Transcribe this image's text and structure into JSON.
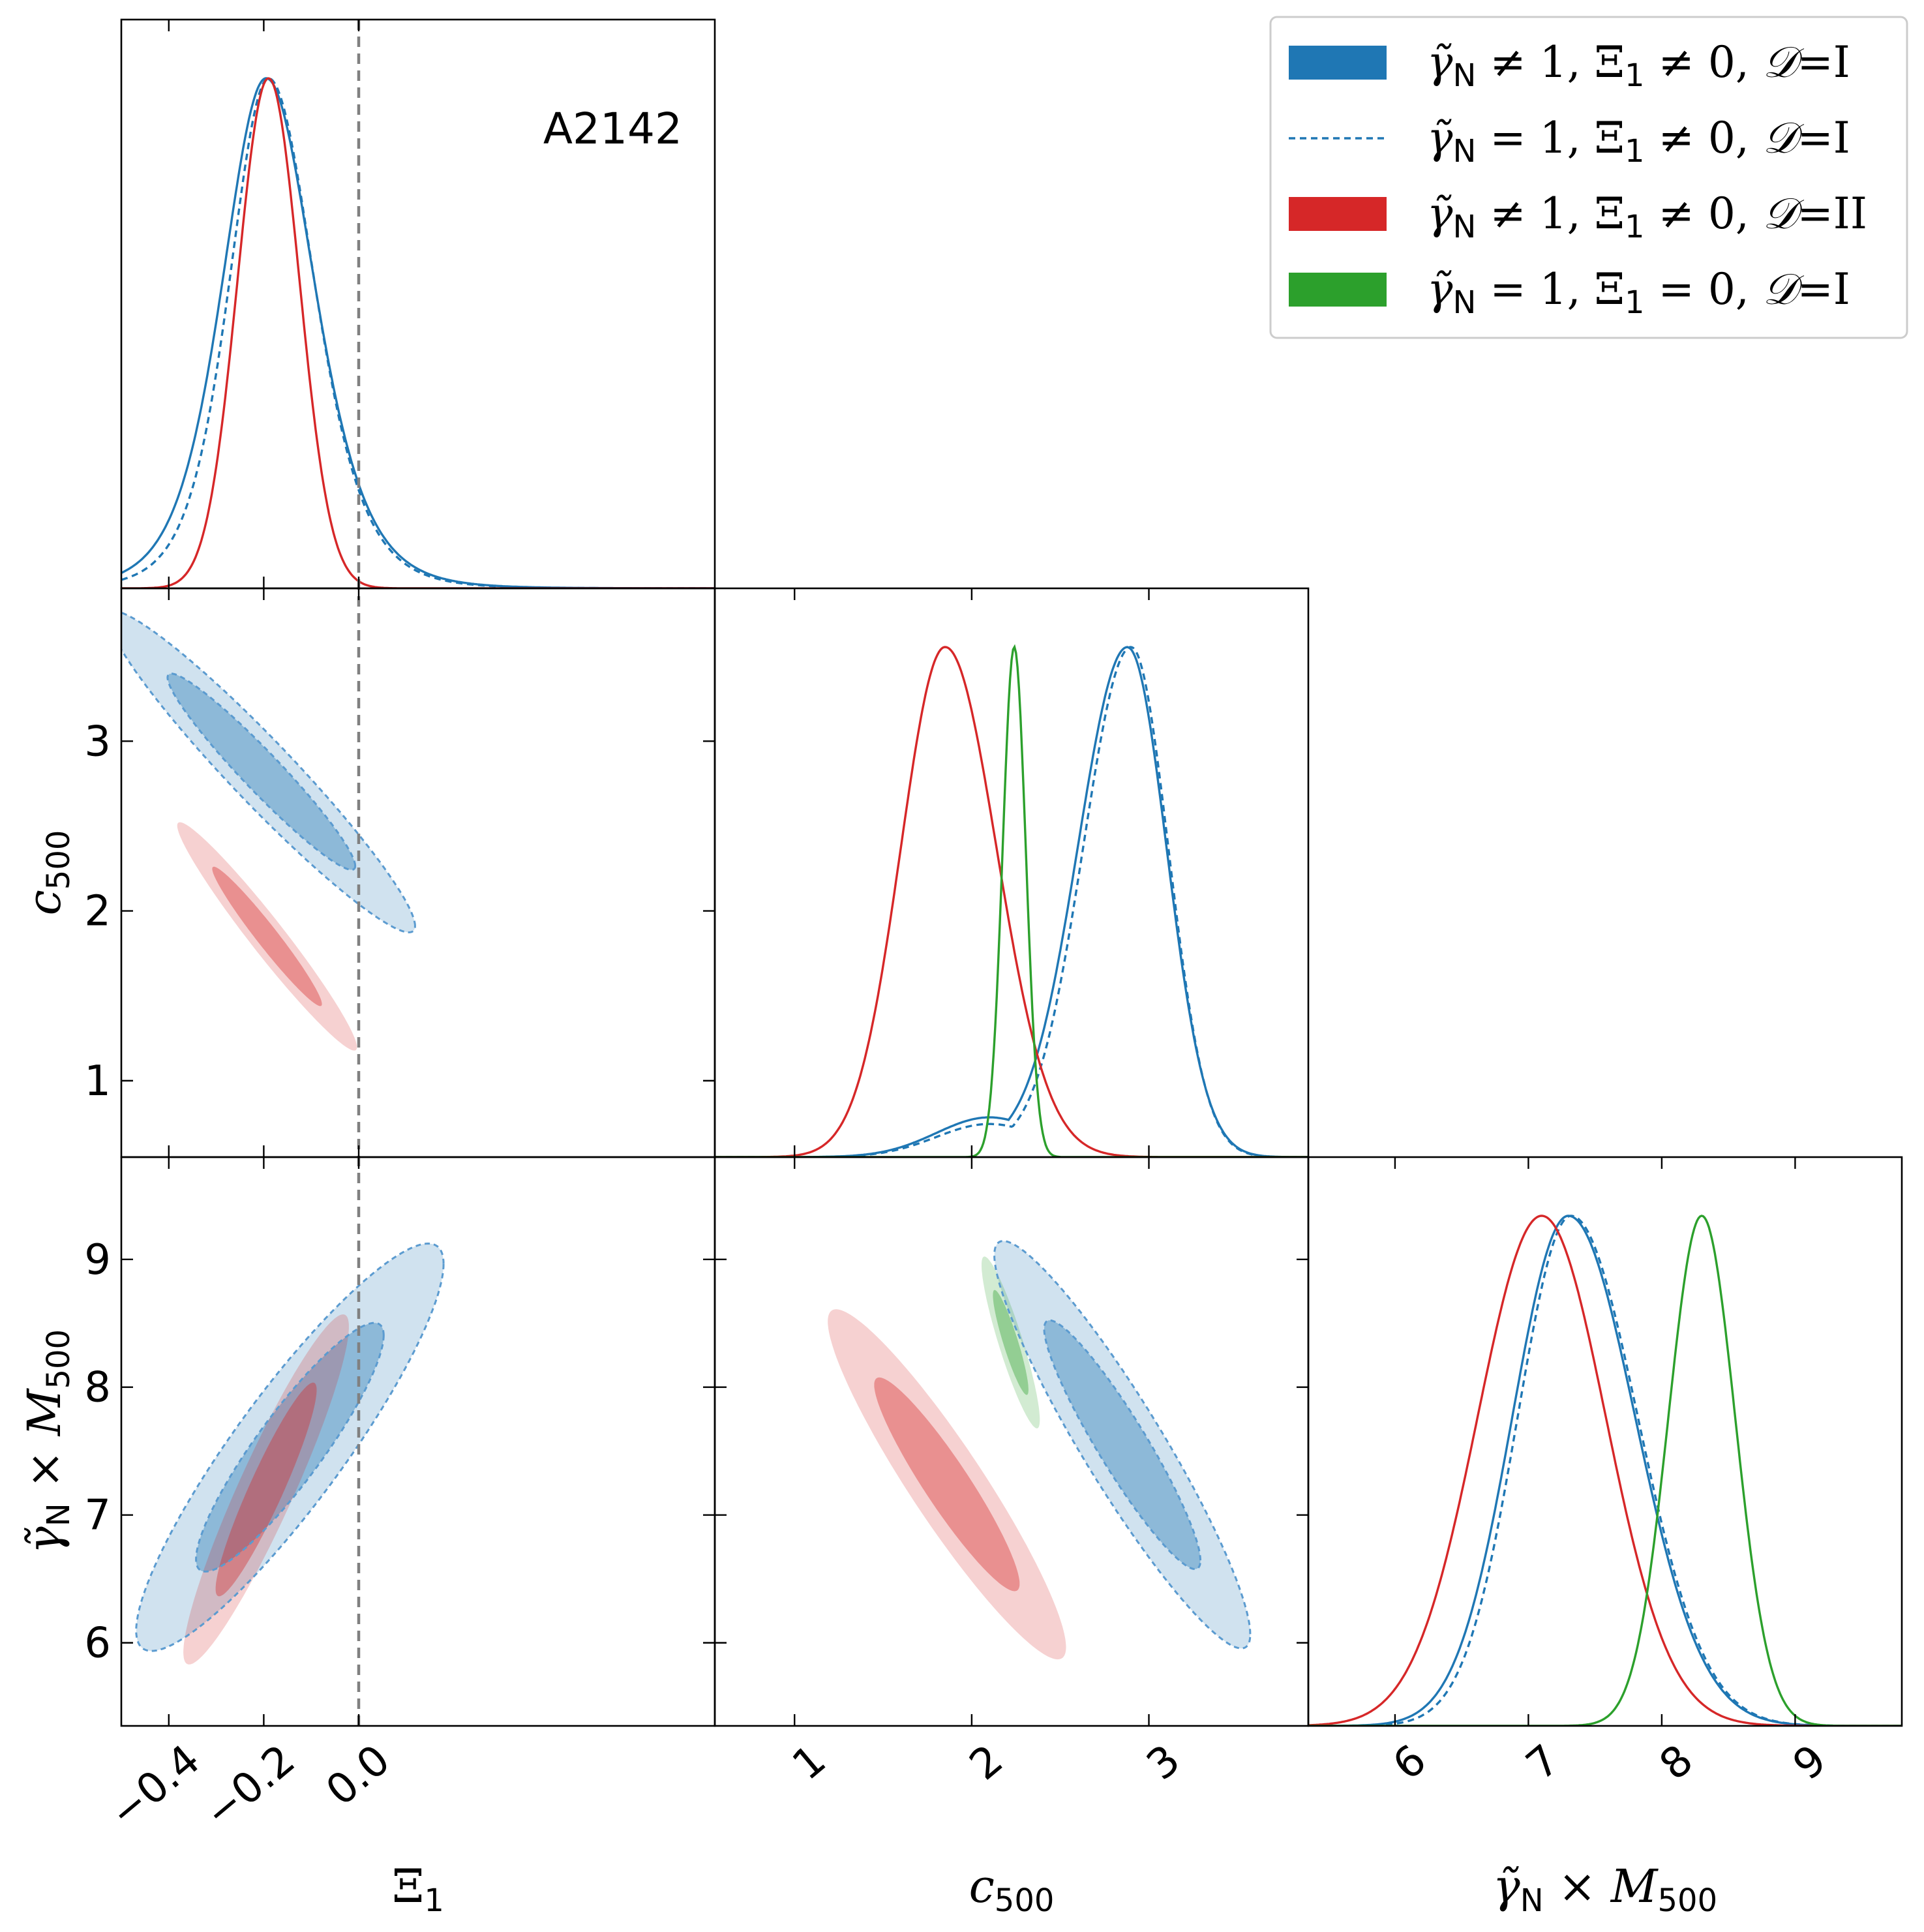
{
  "figure": {
    "annotation": "A2142",
    "reference_line": {
      "param": "xi1",
      "value": 0.0,
      "color": "#808080",
      "style": "dashed"
    }
  },
  "chart_data": {
    "type": "corner",
    "parameters": [
      {
        "key": "xi1",
        "label": "Ξ",
        "label_sub": "1",
        "range": [
          -0.5,
          0.75
        ],
        "ticks": [
          -0.4,
          -0.2,
          0.0
        ],
        "tick_labels": [
          "−0.4",
          "−0.2",
          "0.0"
        ]
      },
      {
        "key": "c500",
        "label": "c",
        "label_sub": "500",
        "range": [
          0.55,
          3.9
        ],
        "ticks": [
          1,
          2,
          3
        ],
        "tick_labels": [
          "1",
          "2",
          "3"
        ]
      },
      {
        "key": "gm500",
        "label": "γ̃",
        "label_sub": "N",
        "label_mid": " × M",
        "label_sub2": "500",
        "range": [
          5.35,
          9.8
        ],
        "ticks": [
          6,
          7,
          8,
          9
        ],
        "tick_labels": [
          "6",
          "7",
          "8",
          "9"
        ]
      }
    ],
    "series": [
      {
        "id": "s1",
        "color": "#1f77b4",
        "style": "filled",
        "legend": {
          "g": "≠ 1",
          "x": "≠ 0",
          "d": "I"
        },
        "marginals": {
          "xi1": {
            "mean": -0.195,
            "sdL": 0.095,
            "sdR": 0.105,
            "tail": "heavy"
          },
          "c500": {
            "mean": 2.88,
            "sdL": 0.28,
            "sdR": 0.22,
            "shoulder": {
              "mean": 2.1,
              "sd": 0.3,
              "amp": 0.06
            }
          },
          "gm500": {
            "mean": 7.3,
            "sdL": 0.42,
            "sdR": 0.5
          }
        },
        "contours": {
          "c500|xi1": {
            "rho": -0.96,
            "mx": -0.205,
            "my": 2.82,
            "sx": 0.13,
            "sy": 0.38
          },
          "gm500|xi1": {
            "rho": 0.9,
            "mx": -0.145,
            "my": 7.53,
            "sx": 0.13,
            "sy": 0.64
          },
          "gm500|c500": {
            "rho": -0.93,
            "mx": 2.85,
            "my": 7.55,
            "sx": 0.29,
            "sy": 0.64
          }
        }
      },
      {
        "id": "s2",
        "color": "#1f77b4",
        "style": "dashed",
        "legend": {
          "g": "= 1",
          "x": "≠ 0",
          "d": "I"
        },
        "marginals": {
          "xi1": {
            "mean": -0.19,
            "sdL": 0.085,
            "sdR": 0.1,
            "tail": "heavy"
          },
          "c500": {
            "mean": 2.9,
            "sdL": 0.27,
            "sdR": 0.21,
            "shoulder": {
              "mean": 2.1,
              "sd": 0.3,
              "amp": 0.05
            }
          },
          "gm500": {
            "mean": 7.32,
            "sdL": 0.4,
            "sdR": 0.5
          }
        },
        "contours": {
          "c500|xi1": {
            "rho": -0.96,
            "mx": -0.205,
            "my": 2.82,
            "sx": 0.13,
            "sy": 0.38
          },
          "gm500|xi1": {
            "rho": 0.9,
            "mx": -0.145,
            "my": 7.53,
            "sx": 0.13,
            "sy": 0.64
          },
          "gm500|c500": {
            "rho": -0.93,
            "mx": 2.85,
            "my": 7.55,
            "sx": 0.29,
            "sy": 0.64
          }
        }
      },
      {
        "id": "s3",
        "color": "#d62728",
        "style": "filled",
        "legend": {
          "g": "≠ 1",
          "x": "≠ 0",
          "d": "II"
        },
        "marginals": {
          "xi1": {
            "mean": -0.19,
            "sdL": 0.065,
            "sdR": 0.065
          },
          "c500": {
            "mean": 1.85,
            "sdL": 0.25,
            "sdR": 0.29
          },
          "gm500": {
            "mean": 7.1,
            "sdL": 0.48,
            "sdR": 0.48
          }
        },
        "contours": {
          "c500|xi1": {
            "rho": -0.97,
            "mx": -0.193,
            "my": 1.85,
            "sx": 0.076,
            "sy": 0.27
          },
          "gm500|xi1": {
            "rho": 0.93,
            "mx": -0.195,
            "my": 7.2,
            "sx": 0.07,
            "sy": 0.55
          },
          "gm500|c500": {
            "rho": -0.93,
            "mx": 1.86,
            "my": 7.24,
            "sx": 0.27,
            "sy": 0.55
          }
        }
      },
      {
        "id": "s4",
        "color": "#2ca02c",
        "style": "filled",
        "legend": {
          "g": "= 1",
          "x": "= 0",
          "d": "I"
        },
        "marginals": {
          "c500": {
            "mean": 2.24,
            "sdL": 0.065,
            "sdR": 0.065
          },
          "gm500": {
            "mean": 8.3,
            "sdL": 0.25,
            "sdR": 0.25
          }
        },
        "contours": {
          "gm500|c500": {
            "rho": -0.9,
            "mx": 2.22,
            "my": 8.35,
            "sx": 0.066,
            "sy": 0.27
          }
        }
      }
    ],
    "legend_template": {
      "gamma": "γ̃",
      "gamma_sub": "N",
      "xi": "Ξ",
      "xi_sub": "1",
      "d": "𝒟",
      "sep": ", ",
      "eq": "="
    }
  }
}
